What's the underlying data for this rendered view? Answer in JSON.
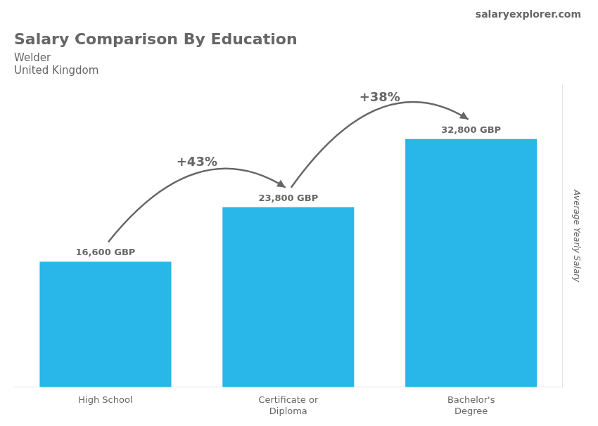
{
  "chart_data": {
    "type": "bar",
    "title": "Salary Comparison By Education",
    "subtitle": [
      "Welder",
      "United Kingdom"
    ],
    "watermark": [
      "salary",
      "explorer.com"
    ],
    "ylabel": "Average Yearly Salary",
    "categories": [
      "High School",
      "Certificate or\nDiploma",
      "Bachelor's\nDegree"
    ],
    "values": [
      16600,
      23800,
      32800
    ],
    "value_labels": [
      "16,600 GBP",
      "23,800 GBP",
      "32,800 GBP"
    ],
    "data_labels": true,
    "annotations": [
      "+43%",
      "+38%"
    ],
    "color": "#29b6e8",
    "ylim": [
      0,
      40000
    ],
    "tick_labels": "x",
    "grid": false
  }
}
